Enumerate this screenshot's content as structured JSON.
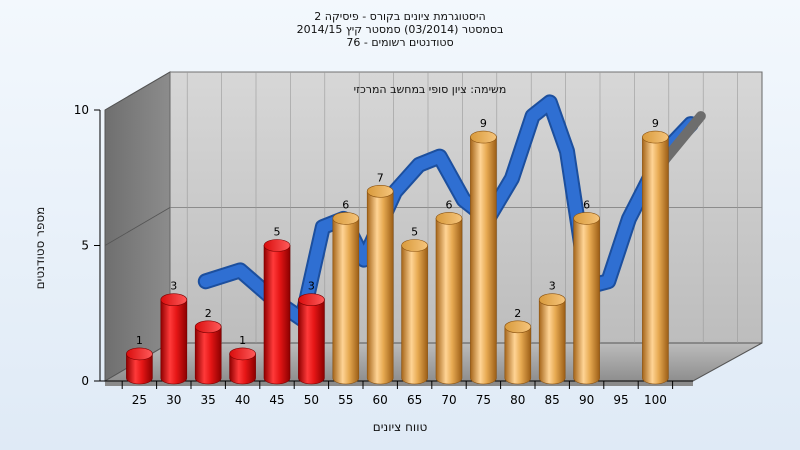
{
  "titles": {
    "line1": "היסטוגרמת ציונים בקורס - פיסיקה 2",
    "line2": "בסמסטר  (03/2014)  סמסטר קיץ 2014/15",
    "line3": "סטודנטים רשומים - 76"
  },
  "chart_data": {
    "type": "bar",
    "title": "היסטוגרמת ציונים בקורס - פיסיקה 2",
    "subtitle": "משימה: ציון סופי במחשב המרכזי",
    "xlabel": "טווח ציונים",
    "ylabel": "מספר סטודנטים",
    "ylim": [
      0,
      10
    ],
    "yticks": [
      0,
      5,
      10
    ],
    "grid": true,
    "categories": [
      "25",
      "30",
      "35",
      "40",
      "45",
      "50",
      "55",
      "60",
      "65",
      "70",
      "75",
      "80",
      "85",
      "90",
      "95",
      "100"
    ],
    "bars": [
      {
        "x": 25,
        "value": 1,
        "color": "#e0191c"
      },
      {
        "x": 30,
        "value": 3,
        "color": "#e0191c"
      },
      {
        "x": 35,
        "value": 2,
        "color": "#e0191c"
      },
      {
        "x": 40,
        "value": 1,
        "color": "#e0191c"
      },
      {
        "x": 45,
        "value": 5,
        "color": "#e0191c"
      },
      {
        "x": 50,
        "value": 3,
        "color": "#e0191c"
      },
      {
        "x": 55,
        "value": 6,
        "color": "#e3a84a"
      },
      {
        "x": 60,
        "value": 7,
        "color": "#e3a84a"
      },
      {
        "x": 65,
        "value": 5,
        "color": "#e3a84a"
      },
      {
        "x": 70,
        "value": 6,
        "color": "#e3a84a"
      },
      {
        "x": 75,
        "value": 9,
        "color": "#e3a84a"
      },
      {
        "x": 80,
        "value": 2,
        "color": "#e3a84a"
      },
      {
        "x": 85,
        "value": 3,
        "color": "#e3a84a"
      },
      {
        "x": 90,
        "value": 6,
        "color": "#e3a84a"
      },
      {
        "x": 100,
        "value": 9,
        "color": "#e3a84a"
      }
    ],
    "curve": [
      [
        32.5,
        3.2
      ],
      [
        37.5,
        3.6
      ],
      [
        42.5,
        2.5
      ],
      [
        46.5,
        1.8
      ],
      [
        49.5,
        5.2
      ],
      [
        52.5,
        5.5
      ],
      [
        55.5,
        4.0
      ],
      [
        60,
        6.5
      ],
      [
        63.5,
        7.5
      ],
      [
        66.5,
        7.8
      ],
      [
        70,
        6.2
      ],
      [
        73.5,
        5.5
      ],
      [
        77,
        7.0
      ],
      [
        80,
        9.3
      ],
      [
        82.5,
        9.8
      ],
      [
        85,
        8.0
      ],
      [
        88,
        3.0
      ],
      [
        91,
        3.2
      ],
      [
        94,
        5.5
      ],
      [
        97,
        7.0
      ],
      [
        100,
        8.2
      ],
      [
        103,
        9.0
      ]
    ],
    "colors": {
      "low": "#e0191c",
      "high": "#e3a84a",
      "curve": "#2f6fd2"
    }
  }
}
